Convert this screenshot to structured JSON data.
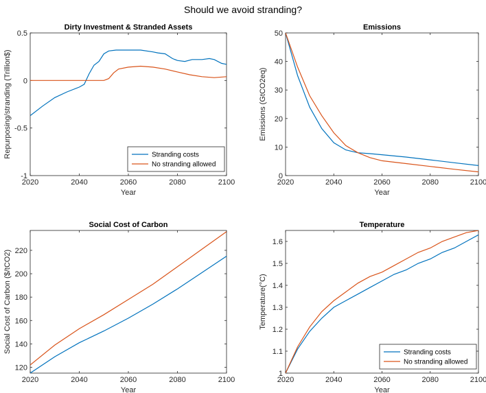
{
  "figure": {
    "title": "Should we avoid stranding?"
  },
  "colors": {
    "series1": "#0072BD",
    "series2": "#D95319"
  },
  "chart_data": [
    {
      "type": "line",
      "title": "Dirty Investment & Stranded Assets",
      "xlabel": "Year",
      "ylabel": "Repurposing/stranding (Trillion$)",
      "xlim": [
        2020,
        2100
      ],
      "ylim": [
        -1,
        0.5
      ],
      "xticks": [
        2020,
        2040,
        2060,
        2080,
        2100
      ],
      "yticks": [
        -1,
        -0.5,
        0,
        0.5
      ],
      "xtick_labels": [
        "2020",
        "2040",
        "2060",
        "2080",
        "2100"
      ],
      "ytick_labels": [
        "-1",
        "-0.5",
        "0",
        "0.5"
      ],
      "legend": {
        "location": "bottom-right"
      },
      "grid": false,
      "series": [
        {
          "name": "Stranding costs",
          "x": [
            2020,
            2025,
            2030,
            2035,
            2040,
            2042,
            2044,
            2046,
            2048,
            2050,
            2052,
            2055,
            2058,
            2060,
            2065,
            2070,
            2072,
            2075,
            2078,
            2080,
            2083,
            2086,
            2088,
            2090,
            2093,
            2095,
            2098,
            2100
          ],
          "y": [
            -0.37,
            -0.27,
            -0.18,
            -0.12,
            -0.07,
            -0.04,
            0.07,
            0.16,
            0.2,
            0.28,
            0.31,
            0.32,
            0.32,
            0.32,
            0.32,
            0.3,
            0.29,
            0.28,
            0.23,
            0.21,
            0.2,
            0.22,
            0.22,
            0.22,
            0.23,
            0.22,
            0.18,
            0.17
          ]
        },
        {
          "name": "No stranding allowed",
          "x": [
            2020,
            2030,
            2040,
            2050,
            2052,
            2054,
            2056,
            2060,
            2065,
            2070,
            2075,
            2080,
            2085,
            2090,
            2095,
            2100
          ],
          "y": [
            0,
            0,
            0,
            0,
            0.02,
            0.08,
            0.12,
            0.14,
            0.15,
            0.14,
            0.12,
            0.09,
            0.06,
            0.04,
            0.03,
            0.04
          ]
        }
      ]
    },
    {
      "type": "line",
      "title": "Emissions",
      "xlabel": "Year",
      "ylabel": "Emissions (GtCO2eq)",
      "xlim": [
        2020,
        2100
      ],
      "ylim": [
        0,
        50
      ],
      "xticks": [
        2020,
        2040,
        2060,
        2080,
        2100
      ],
      "yticks": [
        0,
        10,
        20,
        30,
        40,
        50
      ],
      "xtick_labels": [
        "2020",
        "2040",
        "2060",
        "2080",
        "2100"
      ],
      "ytick_labels": [
        "0",
        "10",
        "20",
        "30",
        "40",
        "50"
      ],
      "grid": false,
      "series": [
        {
          "name": "Stranding costs",
          "x": [
            2020,
            2025,
            2030,
            2035,
            2040,
            2045,
            2050,
            2055,
            2060,
            2070,
            2080,
            2090,
            2100
          ],
          "y": [
            50,
            35,
            24,
            16.5,
            11.5,
            9,
            8,
            7.7,
            7.3,
            6.5,
            5.5,
            4.5,
            3.5
          ]
        },
        {
          "name": "No stranding allowed",
          "x": [
            2020,
            2025,
            2030,
            2035,
            2040,
            2045,
            2050,
            2055,
            2060,
            2070,
            2080,
            2090,
            2100
          ],
          "y": [
            50,
            38,
            28,
            21,
            15,
            10.5,
            8,
            6.3,
            5.2,
            4.2,
            3.2,
            2.2,
            1.3
          ]
        }
      ]
    },
    {
      "type": "line",
      "title": "Social Cost of Carbon",
      "xlabel": "Year",
      "ylabel": "Social Cost of Carbon ($/tCO2)",
      "xlim": [
        2020,
        2100
      ],
      "ylim": [
        115,
        237
      ],
      "xticks": [
        2020,
        2040,
        2060,
        2080,
        2100
      ],
      "yticks": [
        120,
        140,
        160,
        180,
        200,
        220
      ],
      "xtick_labels": [
        "2020",
        "2040",
        "2060",
        "2080",
        "2100"
      ],
      "ytick_labels": [
        "120",
        "140",
        "160",
        "180",
        "200",
        "220"
      ],
      "grid": false,
      "series": [
        {
          "name": "Stranding costs",
          "x": [
            2020,
            2030,
            2040,
            2050,
            2060,
            2070,
            2080,
            2090,
            2100
          ],
          "y": [
            115,
            129,
            141,
            151,
            162,
            174,
            187,
            201,
            215
          ]
        },
        {
          "name": "No stranding allowed",
          "x": [
            2020,
            2030,
            2040,
            2050,
            2060,
            2070,
            2080,
            2090,
            2100
          ],
          "y": [
            122,
            139,
            153,
            165,
            178,
            191,
            206,
            221,
            236
          ]
        }
      ]
    },
    {
      "type": "line",
      "title": "Temperature",
      "xlabel": "Year",
      "ylabel": "Temperature(°C)",
      "xlim": [
        2020,
        2100
      ],
      "ylim": [
        1,
        1.65
      ],
      "xticks": [
        2020,
        2040,
        2060,
        2080,
        2100
      ],
      "yticks": [
        1,
        1.1,
        1.2,
        1.3,
        1.4,
        1.5,
        1.6
      ],
      "xtick_labels": [
        "2020",
        "2040",
        "2060",
        "2080",
        "2100"
      ],
      "ytick_labels": [
        "1",
        "1.1",
        "1.2",
        "1.3",
        "1.4",
        "1.5",
        "1.6"
      ],
      "legend": {
        "location": "bottom-right"
      },
      "grid": false,
      "series": [
        {
          "name": "Stranding costs",
          "x": [
            2020,
            2025,
            2030,
            2035,
            2040,
            2045,
            2050,
            2055,
            2060,
            2065,
            2070,
            2075,
            2080,
            2085,
            2090,
            2095,
            2100
          ],
          "y": [
            1,
            1.11,
            1.19,
            1.25,
            1.3,
            1.33,
            1.36,
            1.39,
            1.42,
            1.45,
            1.47,
            1.5,
            1.52,
            1.55,
            1.57,
            1.6,
            1.63
          ]
        },
        {
          "name": "No stranding allowed",
          "x": [
            2020,
            2025,
            2030,
            2035,
            2040,
            2045,
            2050,
            2055,
            2060,
            2065,
            2070,
            2075,
            2080,
            2085,
            2090,
            2095,
            2100
          ],
          "y": [
            1,
            1.12,
            1.21,
            1.28,
            1.33,
            1.37,
            1.41,
            1.44,
            1.46,
            1.49,
            1.52,
            1.55,
            1.57,
            1.6,
            1.62,
            1.64,
            1.65
          ]
        }
      ]
    }
  ]
}
